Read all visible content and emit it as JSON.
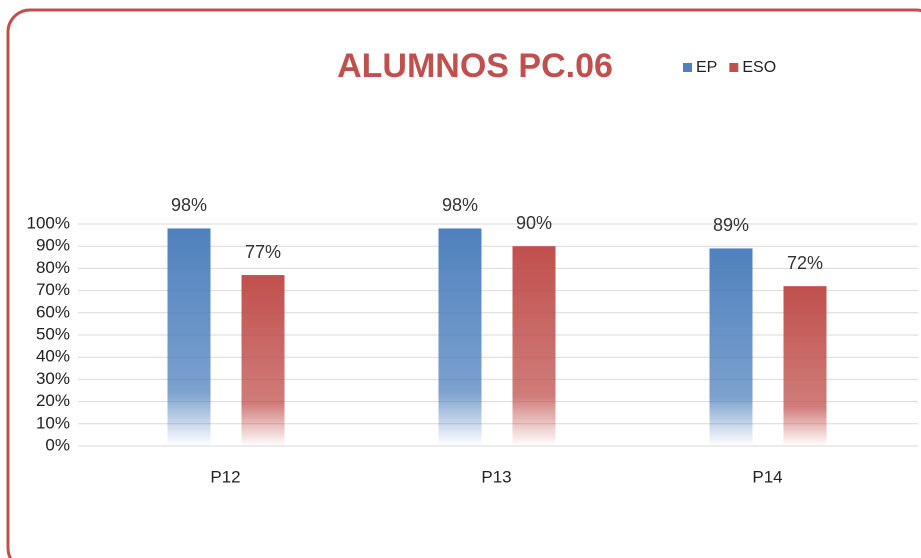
{
  "chart_data": {
    "type": "bar",
    "title": "ALUMNOS PC.06",
    "categories": [
      "P12",
      "P13",
      "P14"
    ],
    "series": [
      {
        "name": "EP",
        "color": "#4f81bd",
        "values": [
          98,
          98,
          89
        ],
        "value_labels": [
          "98%",
          "98%",
          "89%"
        ]
      },
      {
        "name": "ESO",
        "color": "#c0504d",
        "values": [
          77,
          90,
          72
        ],
        "value_labels": [
          "77%",
          "90%",
          "72%"
        ]
      }
    ],
    "ylim": [
      0,
      100
    ],
    "yticks": [
      {
        "value": 0,
        "label": "0%"
      },
      {
        "value": 10,
        "label": "10%"
      },
      {
        "value": 20,
        "label": "20%"
      },
      {
        "value": 30,
        "label": "30%"
      },
      {
        "value": 40,
        "label": "40%"
      },
      {
        "value": 50,
        "label": "50%"
      },
      {
        "value": 60,
        "label": "60%"
      },
      {
        "value": 70,
        "label": "70%"
      },
      {
        "value": 80,
        "label": "80%"
      },
      {
        "value": 90,
        "label": "90%"
      },
      {
        "value": 100,
        "label": "100%"
      }
    ],
    "grid": true,
    "legend": "top-right"
  }
}
